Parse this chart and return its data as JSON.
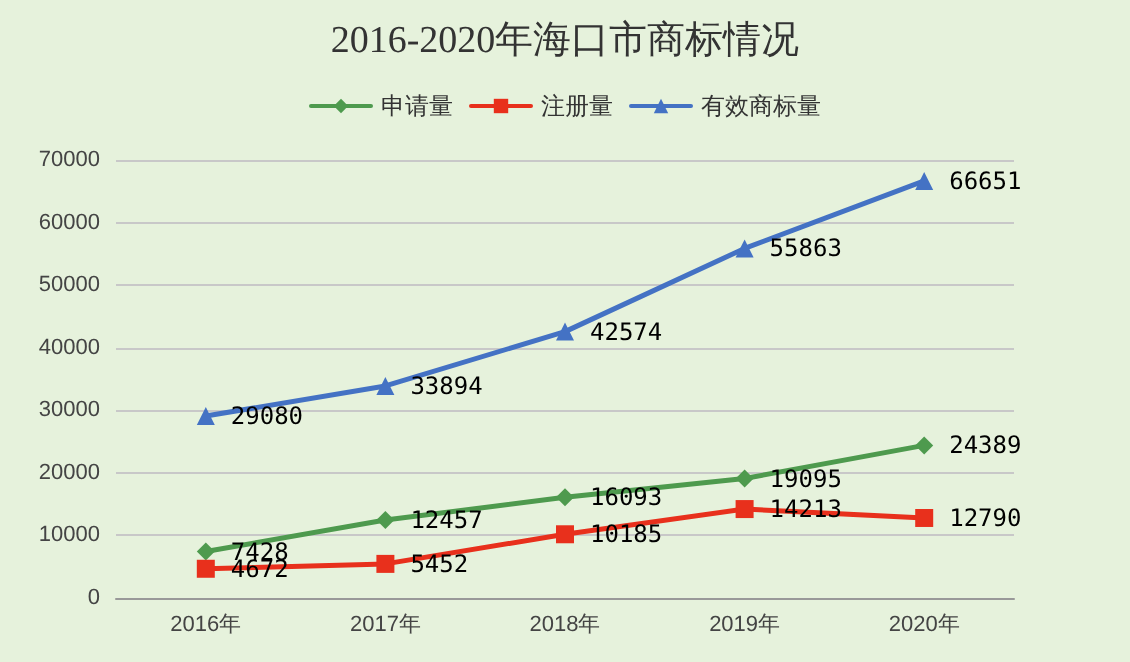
{
  "chart_data": {
    "type": "line",
    "title": "2016-2020年海口市商标情况",
    "categories": [
      "2016年",
      "2017年",
      "2018年",
      "2019年",
      "2020年"
    ],
    "series": [
      {
        "name": "申请量",
        "color": "#4e9a4e",
        "marker": "diamond",
        "values": [
          7428,
          12457,
          16093,
          19095,
          24389
        ]
      },
      {
        "name": "注册量",
        "color": "#e8301c",
        "marker": "square",
        "values": [
          4672,
          5452,
          10185,
          14213,
          12790
        ]
      },
      {
        "name": "有效商标量",
        "color": "#4472c4",
        "marker": "triangle",
        "values": [
          29080,
          33894,
          42574,
          55863,
          66651
        ]
      }
    ],
    "ylim": [
      0,
      70000
    ],
    "yticks": [
      0,
      10000,
      20000,
      30000,
      40000,
      50000,
      60000,
      70000
    ],
    "grid": "y",
    "legend": "top",
    "data_labels": true,
    "line_style": "solid"
  }
}
